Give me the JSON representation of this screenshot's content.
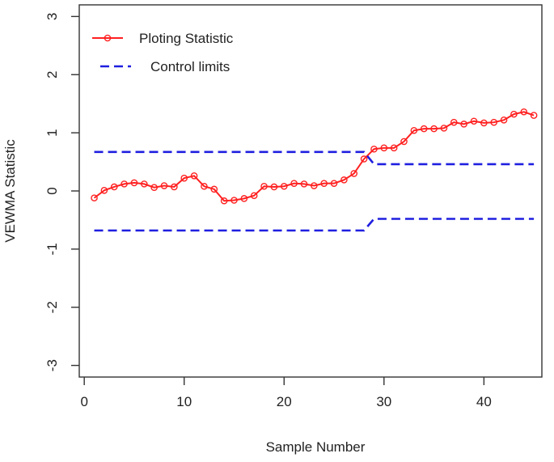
{
  "chart_data": {
    "type": "line",
    "xlabel": "Sample Number",
    "ylabel": "VEWMA Statistic",
    "xlim": [
      -0.5,
      45.8
    ],
    "ylim": [
      -3.2,
      3.2
    ],
    "x_ticks": [
      0,
      10,
      20,
      30,
      40
    ],
    "y_ticks": [
      -3,
      -2,
      -1,
      0,
      1,
      2,
      3
    ],
    "legend_position": "top-left",
    "legend": [
      {
        "label": "Ploting Statistic",
        "style": "line-marker",
        "color": "#ff2020"
      },
      {
        "label": "Control limits",
        "style": "dashed",
        "color": "#1f1fe0"
      }
    ],
    "series": [
      {
        "name": "Ploting Statistic",
        "color": "#ff2020",
        "marker": "open-circle",
        "x": [
          1,
          2,
          3,
          4,
          5,
          6,
          7,
          8,
          9,
          10,
          11,
          12,
          13,
          14,
          15,
          16,
          17,
          18,
          19,
          20,
          21,
          22,
          23,
          24,
          25,
          26,
          27,
          28,
          29,
          30,
          31,
          32,
          33,
          34,
          35,
          36,
          37,
          38,
          39,
          40,
          41,
          42,
          43,
          44,
          45
        ],
        "y": [
          -0.12,
          0.01,
          0.07,
          0.12,
          0.14,
          0.12,
          0.06,
          0.09,
          0.07,
          0.22,
          0.26,
          0.08,
          0.03,
          -0.17,
          -0.16,
          -0.13,
          -0.08,
          0.08,
          0.07,
          0.08,
          0.13,
          0.12,
          0.09,
          0.13,
          0.13,
          0.19,
          0.3,
          0.55,
          0.72,
          0.74,
          0.74,
          0.85,
          1.04,
          1.07,
          1.07,
          1.08,
          1.18,
          1.15,
          1.2,
          1.17,
          1.18,
          1.22,
          1.32,
          1.36,
          1.3
        ]
      },
      {
        "name": "Control limits",
        "color": "#1f1fe0",
        "dash": true,
        "x": [
          1,
          28,
          29,
          45
        ],
        "y": [
          0.67,
          0.67,
          0.46,
          0.46
        ]
      },
      {
        "name": "Control limits",
        "color": "#1f1fe0",
        "dash": true,
        "x": [
          1,
          28,
          29,
          45
        ],
        "y": [
          -0.68,
          -0.68,
          -0.48,
          -0.48
        ]
      }
    ]
  }
}
